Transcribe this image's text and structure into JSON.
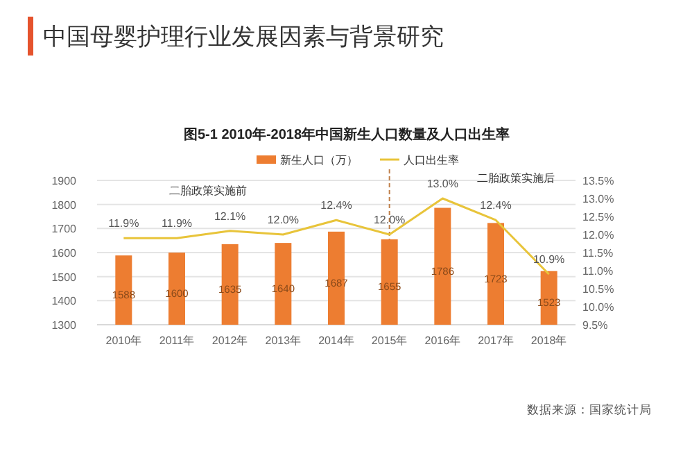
{
  "chart_data": {
    "type": "bar",
    "title": "中国母婴护理行业发展因素与背景研究",
    "subtitle": "图5-1 2010年-2018年中国新生人口数量及人口出生率",
    "categories": [
      "2010年",
      "2011年",
      "2012年",
      "2013年",
      "2014年",
      "2015年",
      "2016年",
      "2017年",
      "2018年"
    ],
    "series": [
      {
        "name": "新生人口（万）",
        "color": "#ed7d31",
        "values": [
          1588,
          1600,
          1635,
          1640,
          1687,
          1655,
          1786,
          1723,
          1523
        ],
        "value_labels": [
          "1588",
          "1600",
          "1635",
          "1640",
          "1687",
          "1655",
          "1786",
          "1723",
          "1523"
        ]
      },
      {
        "name": "人口出生率",
        "type": "line",
        "axis": "y2",
        "color": "#e8c43a",
        "values": [
          11.9,
          11.9,
          12.1,
          12.0,
          12.4,
          12.0,
          13.0,
          12.4,
          10.9
        ],
        "value_labels": [
          "11.9%",
          "11.9%",
          "12.1%",
          "12.0%",
          "12.4%",
          "12.0%",
          "13.0%",
          "12.4%",
          "10.9%"
        ]
      }
    ],
    "ylim": [
      1300,
      1900
    ],
    "yticks": [
      1300,
      1400,
      1500,
      1600,
      1700,
      1800,
      1900
    ],
    "y2lim": [
      9.5,
      13.5
    ],
    "y2ticks": [
      {
        "value": 9.5,
        "label": "9.5%"
      },
      {
        "value": 10,
        "label": "10.0%"
      },
      {
        "value": 10.5,
        "label": "10.5%"
      },
      {
        "value": 11,
        "label": "11.0%"
      },
      {
        "value": 11.5,
        "label": "11.5%"
      },
      {
        "value": 12,
        "label": "12.0%"
      },
      {
        "value": 12.5,
        "label": "12.5%"
      },
      {
        "value": 13,
        "label": "13.0%"
      },
      {
        "value": 13.5,
        "label": "13.5%"
      }
    ],
    "ref_lines": [
      {
        "axis": "x",
        "value": "2015年",
        "color": "#c0804a",
        "line_style": "dashed"
      }
    ],
    "annotations": [
      "二胎政策实施前",
      "二胎政策实施后",
      "数据来源：国家统计局"
    ],
    "grid": "y",
    "legend": "top",
    "marker": "none",
    "line_style": "solid"
  }
}
